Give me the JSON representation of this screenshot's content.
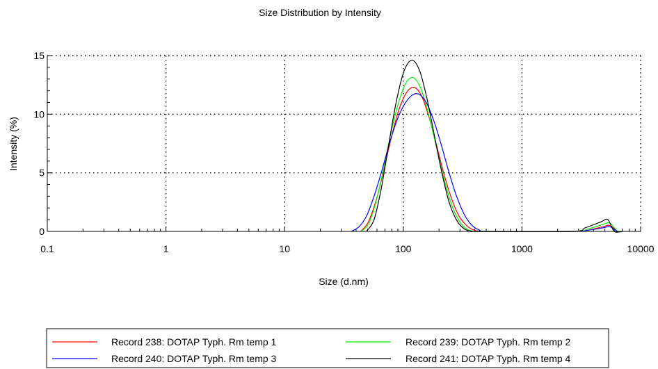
{
  "chart_data": {
    "type": "line",
    "title": "Size Distribution by Intensity",
    "xlabel": "Size (d.nm)",
    "ylabel": "Intensity (%)",
    "xscale": "log",
    "xlim": [
      0.1,
      10000
    ],
    "ylim": [
      0,
      15
    ],
    "xticks": [
      {
        "value": 0.1,
        "label": "0.1"
      },
      {
        "value": 1,
        "label": "1"
      },
      {
        "value": 10,
        "label": "10"
      },
      {
        "value": 100,
        "label": "100"
      },
      {
        "value": 1000,
        "label": "1000"
      },
      {
        "value": 10000,
        "label": "10000"
      }
    ],
    "yticks": [
      {
        "value": 0,
        "label": "0"
      },
      {
        "value": 5,
        "label": "5"
      },
      {
        "value": 10,
        "label": "10"
      },
      {
        "value": 15,
        "label": "15"
      }
    ],
    "grid": "dotted",
    "legend_position": "bottom",
    "series": [
      {
        "name": "Record 238: DOTAP Typh. Rm temp 1",
        "color": "#ff0000",
        "x": [
          43.8,
          50.7,
          58.8,
          68.1,
          78.8,
          91.3,
          105.7,
          122.4,
          141.8,
          164.2,
          190.1,
          220.2,
          255.0,
          295.3,
          342.0,
          396.1,
          458.7,
          531.2,
          2700,
          3580,
          4800,
          5500,
          6400,
          7000
        ],
        "y": [
          0,
          0.8,
          2.6,
          5.1,
          7.9,
          10.3,
          11.8,
          12.3,
          11.6,
          9.8,
          7.4,
          4.9,
          2.8,
          1.3,
          0.5,
          0.1,
          0,
          0,
          0,
          0.1,
          0.4,
          0.5,
          0,
          0
        ]
      },
      {
        "name": "Record 239: DOTAP Typh. Rm temp 2",
        "color": "#00ee00",
        "x": [
          43.8,
          50.7,
          58.8,
          68.1,
          78.8,
          91.3,
          105.7,
          122.4,
          141.8,
          164.2,
          190.1,
          220.2,
          255.0,
          295.3,
          342.0,
          396.1,
          458.7,
          531.2,
          2700,
          3580,
          4800,
          5500,
          6400,
          7000
        ],
        "y": [
          0,
          0.6,
          2.5,
          5.3,
          8.4,
          11.0,
          12.7,
          13.1,
          12.1,
          9.9,
          7.2,
          4.5,
          2.3,
          0.9,
          0.2,
          0,
          0,
          0,
          0,
          0.2,
          0.6,
          0.7,
          0,
          0
        ]
      },
      {
        "name": "Record 240: DOTAP Typh. Rm temp 3",
        "color": "#0000ff",
        "x": [
          36.5,
          42.3,
          48.9,
          56.7,
          65.6,
          75.9,
          87.8,
          101.7,
          117.8,
          136.3,
          157.8,
          182.7,
          211.5,
          244.9,
          283.6,
          328.4,
          380.2,
          440.2,
          509.8,
          2700,
          3580,
          4800,
          5500,
          6400,
          7000
        ],
        "y": [
          0,
          0.4,
          1.3,
          3.0,
          5.1,
          7.4,
          9.4,
          10.8,
          11.6,
          11.7,
          10.9,
          9.3,
          7.2,
          4.9,
          2.9,
          1.4,
          0.5,
          0.1,
          0,
          0,
          0.1,
          0.3,
          0.4,
          0,
          0
        ]
      },
      {
        "name": "Record 241: DOTAP Typh. Rm temp 4",
        "color": "#000000",
        "x": [
          48.9,
          56.7,
          65.6,
          75.9,
          87.8,
          101.7,
          117.8,
          136.3,
          157.8,
          182.7,
          211.5,
          244.9,
          283.6,
          328.4,
          380.2,
          440.2,
          2600,
          3400,
          4600,
          5300,
          6000,
          7000
        ],
        "y": [
          0,
          1.0,
          3.8,
          7.6,
          11.2,
          13.7,
          14.6,
          13.8,
          11.4,
          8.2,
          5.0,
          2.4,
          0.9,
          0.2,
          0,
          0,
          0,
          0.3,
          0.8,
          1.0,
          0,
          0
        ]
      }
    ]
  }
}
